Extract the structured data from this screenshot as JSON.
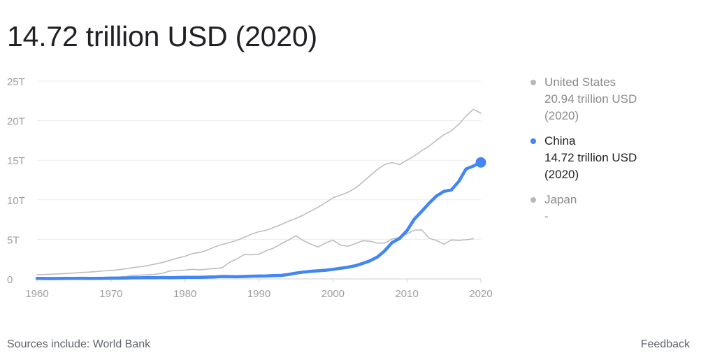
{
  "headline": "14.72 trillion USD (2020)",
  "legend": [
    {
      "name": "United States",
      "value": "20.94 trillion USD",
      "year": "(2020)",
      "color": "#bdbdbd",
      "active": false
    },
    {
      "name": "China",
      "value": "14.72 trillion USD",
      "year": "(2020)",
      "color": "#4285f4",
      "active": true
    },
    {
      "name": "Japan",
      "value": "-",
      "year": "",
      "color": "#bdbdbd",
      "active": false
    }
  ],
  "footer": {
    "sources": "Sources include: World Bank",
    "feedback": "Feedback"
  },
  "chart_data": {
    "type": "line",
    "title": "",
    "xlabel": "",
    "ylabel": "",
    "xlim": [
      1960,
      2020
    ],
    "ylim": [
      0,
      25
    ],
    "x_ticks": [
      1960,
      1970,
      1980,
      1990,
      2000,
      2010,
      2020
    ],
    "x_tick_labels": [
      "1960",
      "1970",
      "1980",
      "1990",
      "2000",
      "2010",
      "2020"
    ],
    "y_ticks": [
      0,
      5,
      10,
      15,
      20,
      25
    ],
    "y_tick_labels": [
      "0",
      "5T",
      "10T",
      "15T",
      "20T",
      "25T"
    ],
    "grid": "horizontal",
    "legend_position": "right",
    "series": [
      {
        "name": "United States",
        "color": "#bdbdbd",
        "points": [
          [
            1960,
            0.54
          ],
          [
            1961,
            0.56
          ],
          [
            1962,
            0.6
          ],
          [
            1963,
            0.64
          ],
          [
            1964,
            0.69
          ],
          [
            1965,
            0.74
          ],
          [
            1966,
            0.81
          ],
          [
            1967,
            0.86
          ],
          [
            1968,
            0.94
          ],
          [
            1969,
            1.02
          ],
          [
            1970,
            1.07
          ],
          [
            1971,
            1.16
          ],
          [
            1972,
            1.28
          ],
          [
            1973,
            1.43
          ],
          [
            1974,
            1.55
          ],
          [
            1975,
            1.69
          ],
          [
            1976,
            1.88
          ],
          [
            1977,
            2.09
          ],
          [
            1978,
            2.36
          ],
          [
            1979,
            2.63
          ],
          [
            1980,
            2.86
          ],
          [
            1981,
            3.21
          ],
          [
            1982,
            3.34
          ],
          [
            1983,
            3.64
          ],
          [
            1984,
            4.04
          ],
          [
            1985,
            4.35
          ],
          [
            1986,
            4.59
          ],
          [
            1987,
            4.87
          ],
          [
            1988,
            5.25
          ],
          [
            1989,
            5.66
          ],
          [
            1990,
            5.96
          ],
          [
            1991,
            6.16
          ],
          [
            1992,
            6.52
          ],
          [
            1993,
            6.86
          ],
          [
            1994,
            7.29
          ],
          [
            1995,
            7.64
          ],
          [
            1996,
            8.07
          ],
          [
            1997,
            8.58
          ],
          [
            1998,
            9.06
          ],
          [
            1999,
            9.63
          ],
          [
            2000,
            10.25
          ],
          [
            2001,
            10.58
          ],
          [
            2002,
            10.94
          ],
          [
            2003,
            11.46
          ],
          [
            2004,
            12.21
          ],
          [
            2005,
            13.04
          ],
          [
            2006,
            13.82
          ],
          [
            2007,
            14.45
          ],
          [
            2008,
            14.71
          ],
          [
            2009,
            14.45
          ],
          [
            2010,
            15.0
          ],
          [
            2011,
            15.54
          ],
          [
            2012,
            16.2
          ],
          [
            2013,
            16.78
          ],
          [
            2014,
            17.52
          ],
          [
            2015,
            18.22
          ],
          [
            2016,
            18.71
          ],
          [
            2017,
            19.52
          ],
          [
            2018,
            20.58
          ],
          [
            2019,
            21.43
          ],
          [
            2020,
            20.94
          ]
        ]
      },
      {
        "name": "Japan",
        "color": "#bdbdbd",
        "points": [
          [
            1960,
            0.044
          ],
          [
            1961,
            0.054
          ],
          [
            1962,
            0.06
          ],
          [
            1963,
            0.07
          ],
          [
            1964,
            0.082
          ],
          [
            1965,
            0.091
          ],
          [
            1966,
            0.106
          ],
          [
            1967,
            0.124
          ],
          [
            1968,
            0.147
          ],
          [
            1969,
            0.172
          ],
          [
            1970,
            0.213
          ],
          [
            1971,
            0.241
          ],
          [
            1972,
            0.318
          ],
          [
            1973,
            0.432
          ],
          [
            1974,
            0.479
          ],
          [
            1975,
            0.522
          ],
          [
            1976,
            0.587
          ],
          [
            1977,
            0.737
          ],
          [
            1978,
            1.01
          ],
          [
            1979,
            1.06
          ],
          [
            1980,
            1.11
          ],
          [
            1981,
            1.22
          ],
          [
            1982,
            1.13
          ],
          [
            1983,
            1.24
          ],
          [
            1984,
            1.32
          ],
          [
            1985,
            1.4
          ],
          [
            1986,
            2.08
          ],
          [
            1987,
            2.53
          ],
          [
            1988,
            3.07
          ],
          [
            1989,
            3.05
          ],
          [
            1990,
            3.13
          ],
          [
            1991,
            3.58
          ],
          [
            1992,
            3.91
          ],
          [
            1993,
            4.45
          ],
          [
            1994,
            4.91
          ],
          [
            1995,
            5.45
          ],
          [
            1996,
            4.83
          ],
          [
            1997,
            4.41
          ],
          [
            1998,
            4.03
          ],
          [
            1999,
            4.56
          ],
          [
            2000,
            4.89
          ],
          [
            2001,
            4.3
          ],
          [
            2002,
            4.12
          ],
          [
            2003,
            4.45
          ],
          [
            2004,
            4.82
          ],
          [
            2005,
            4.76
          ],
          [
            2006,
            4.53
          ],
          [
            2007,
            4.52
          ],
          [
            2008,
            5.04
          ],
          [
            2009,
            5.23
          ],
          [
            2010,
            5.7
          ],
          [
            2011,
            6.16
          ],
          [
            2012,
            6.2
          ],
          [
            2013,
            5.16
          ],
          [
            2014,
            4.85
          ],
          [
            2015,
            4.39
          ],
          [
            2016,
            4.92
          ],
          [
            2017,
            4.87
          ],
          [
            2018,
            4.95
          ],
          [
            2019,
            5.08
          ]
        ]
      },
      {
        "name": "China",
        "color": "#4285f4",
        "points": [
          [
            1960,
            0.06
          ],
          [
            1961,
            0.05
          ],
          [
            1962,
            0.047
          ],
          [
            1963,
            0.051
          ],
          [
            1964,
            0.06
          ],
          [
            1965,
            0.07
          ],
          [
            1966,
            0.076
          ],
          [
            1967,
            0.072
          ],
          [
            1968,
            0.07
          ],
          [
            1969,
            0.079
          ],
          [
            1970,
            0.093
          ],
          [
            1971,
            0.1
          ],
          [
            1972,
            0.114
          ],
          [
            1973,
            0.139
          ],
          [
            1974,
            0.144
          ],
          [
            1975,
            0.164
          ],
          [
            1976,
            0.154
          ],
          [
            1977,
            0.175
          ],
          [
            1978,
            0.15
          ],
          [
            1979,
            0.178
          ],
          [
            1980,
            0.191
          ],
          [
            1981,
            0.196
          ],
          [
            1982,
            0.205
          ],
          [
            1983,
            0.23
          ],
          [
            1984,
            0.26
          ],
          [
            1985,
            0.31
          ],
          [
            1986,
            0.3
          ],
          [
            1987,
            0.273
          ],
          [
            1988,
            0.312
          ],
          [
            1989,
            0.348
          ],
          [
            1990,
            0.361
          ],
          [
            1991,
            0.383
          ],
          [
            1992,
            0.427
          ],
          [
            1993,
            0.445
          ],
          [
            1994,
            0.564
          ],
          [
            1995,
            0.734
          ],
          [
            1996,
            0.864
          ],
          [
            1997,
            0.962
          ],
          [
            1998,
            1.029
          ],
          [
            1999,
            1.094
          ],
          [
            2000,
            1.211
          ],
          [
            2001,
            1.339
          ],
          [
            2002,
            1.471
          ],
          [
            2003,
            1.66
          ],
          [
            2004,
            1.955
          ],
          [
            2005,
            2.286
          ],
          [
            2006,
            2.752
          ],
          [
            2007,
            3.552
          ],
          [
            2008,
            4.594
          ],
          [
            2009,
            5.102
          ],
          [
            2010,
            6.087
          ],
          [
            2011,
            7.552
          ],
          [
            2012,
            8.532
          ],
          [
            2013,
            9.57
          ],
          [
            2014,
            10.476
          ],
          [
            2015,
            11.062
          ],
          [
            2016,
            11.233
          ],
          [
            2017,
            12.31
          ],
          [
            2018,
            13.895
          ],
          [
            2019,
            14.28
          ],
          [
            2020,
            14.72
          ]
        ]
      }
    ]
  }
}
